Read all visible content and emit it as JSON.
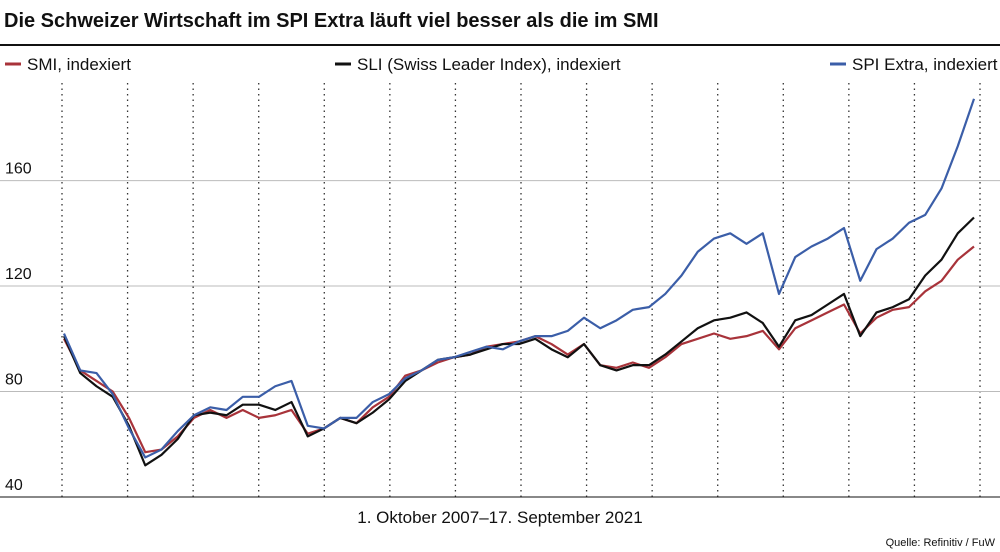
{
  "chart_data": {
    "type": "line",
    "title": "Die Schweizer Wirtschaft im SPI Extra läuft viel besser als die im SMI",
    "xlabel": "1. Oktober 2007–17. September 2021",
    "source": "Quelle: Refinitiv / FuW",
    "series": [
      {
        "name": "SMI, indexiert",
        "color": "#a8333a",
        "values": [
          100,
          88,
          84,
          80,
          70,
          57,
          58,
          63,
          70,
          73,
          70,
          73,
          70,
          71,
          73,
          64,
          66,
          70,
          68,
          74,
          78,
          86,
          88,
          91,
          93,
          94,
          97,
          98,
          99,
          101,
          98,
          94,
          98,
          90,
          89,
          91,
          89,
          93,
          98,
          100,
          102,
          100,
          101,
          103,
          96,
          104,
          107,
          110,
          113,
          102,
          108,
          111,
          112,
          118,
          122,
          130,
          135
        ]
      },
      {
        "name": "SLI (Swiss Leader Index), indexiert",
        "color": "#111111",
        "values": [
          101,
          87,
          82,
          78,
          67,
          52,
          56,
          62,
          71,
          72,
          71,
          75,
          75,
          73,
          76,
          63,
          66,
          70,
          68,
          72,
          77,
          84,
          88,
          92,
          93,
          94,
          96,
          98,
          98,
          100,
          96,
          93,
          98,
          90,
          88,
          90,
          90,
          94,
          99,
          104,
          107,
          108,
          110,
          106,
          97,
          107,
          109,
          113,
          117,
          101,
          110,
          112,
          115,
          124,
          130,
          140,
          146
        ]
      },
      {
        "name": "SPI Extra, indexiert",
        "color": "#3b5ea8",
        "values": [
          102,
          88,
          87,
          79,
          66,
          55,
          58,
          65,
          71,
          74,
          73,
          78,
          78,
          82,
          84,
          67,
          66,
          70,
          70,
          76,
          79,
          85,
          88,
          92,
          93,
          95,
          97,
          96,
          99,
          101,
          101,
          103,
          108,
          104,
          107,
          111,
          112,
          117,
          124,
          133,
          138,
          140,
          136,
          140,
          117,
          131,
          135,
          138,
          142,
          122,
          134,
          138,
          144,
          147,
          157,
          173,
          191
        ]
      }
    ],
    "ylim": [
      40,
      197
    ],
    "yticks": [
      40,
      80,
      120,
      160
    ],
    "grid": true
  }
}
